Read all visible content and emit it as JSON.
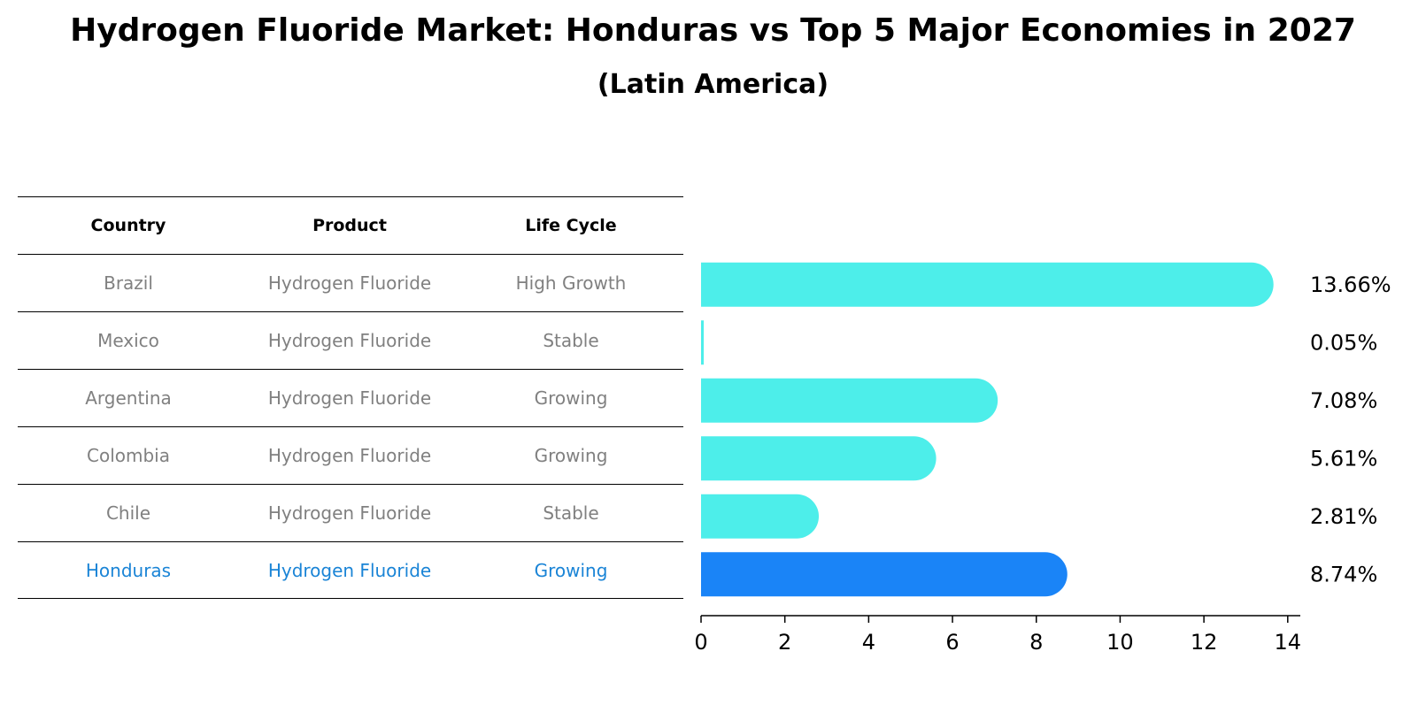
{
  "title": "Hydrogen Fluoride Market: Honduras vs Top 5 Major Economies in 2027",
  "subtitle": "(Latin America)",
  "table": {
    "headers": [
      "Country",
      "Product",
      "Life Cycle"
    ],
    "rows": [
      {
        "country": "Brazil",
        "product": "Hydrogen Fluoride",
        "life_cycle": "High Growth"
      },
      {
        "country": "Mexico",
        "product": "Hydrogen Fluoride",
        "life_cycle": "Stable"
      },
      {
        "country": "Argentina",
        "product": "Hydrogen Fluoride",
        "life_cycle": "Growing"
      },
      {
        "country": "Colombia",
        "product": "Hydrogen Fluoride",
        "life_cycle": "Growing"
      },
      {
        "country": "Chile",
        "product": "Hydrogen Fluoride",
        "life_cycle": "Stable"
      },
      {
        "country": "Honduras",
        "product": "Hydrogen Fluoride",
        "life_cycle": "Growing"
      }
    ]
  },
  "colors": {
    "bar": "#4deeea",
    "highlight": "#1a84f7",
    "highlight_text": "#1a84d6",
    "muted_text": "#808080"
  },
  "chart_data": {
    "type": "bar",
    "orientation": "horizontal",
    "categories": [
      "Brazil",
      "Mexico",
      "Argentina",
      "Colombia",
      "Chile",
      "Honduras"
    ],
    "values": [
      13.66,
      0.05,
      7.08,
      5.61,
      2.81,
      8.74
    ],
    "value_labels": [
      "13.66%",
      "0.05%",
      "7.08%",
      "5.61%",
      "2.81%",
      "8.74%"
    ],
    "highlight": "Honduras",
    "xlim": [
      0,
      14.3
    ],
    "xticks": [
      0,
      2,
      4,
      6,
      8,
      10,
      12,
      14
    ],
    "xtick_labels": [
      "0",
      "2",
      "4",
      "6",
      "8",
      "10",
      "12",
      "14"
    ],
    "xlabel": "",
    "ylabel": "",
    "grid": false
  }
}
